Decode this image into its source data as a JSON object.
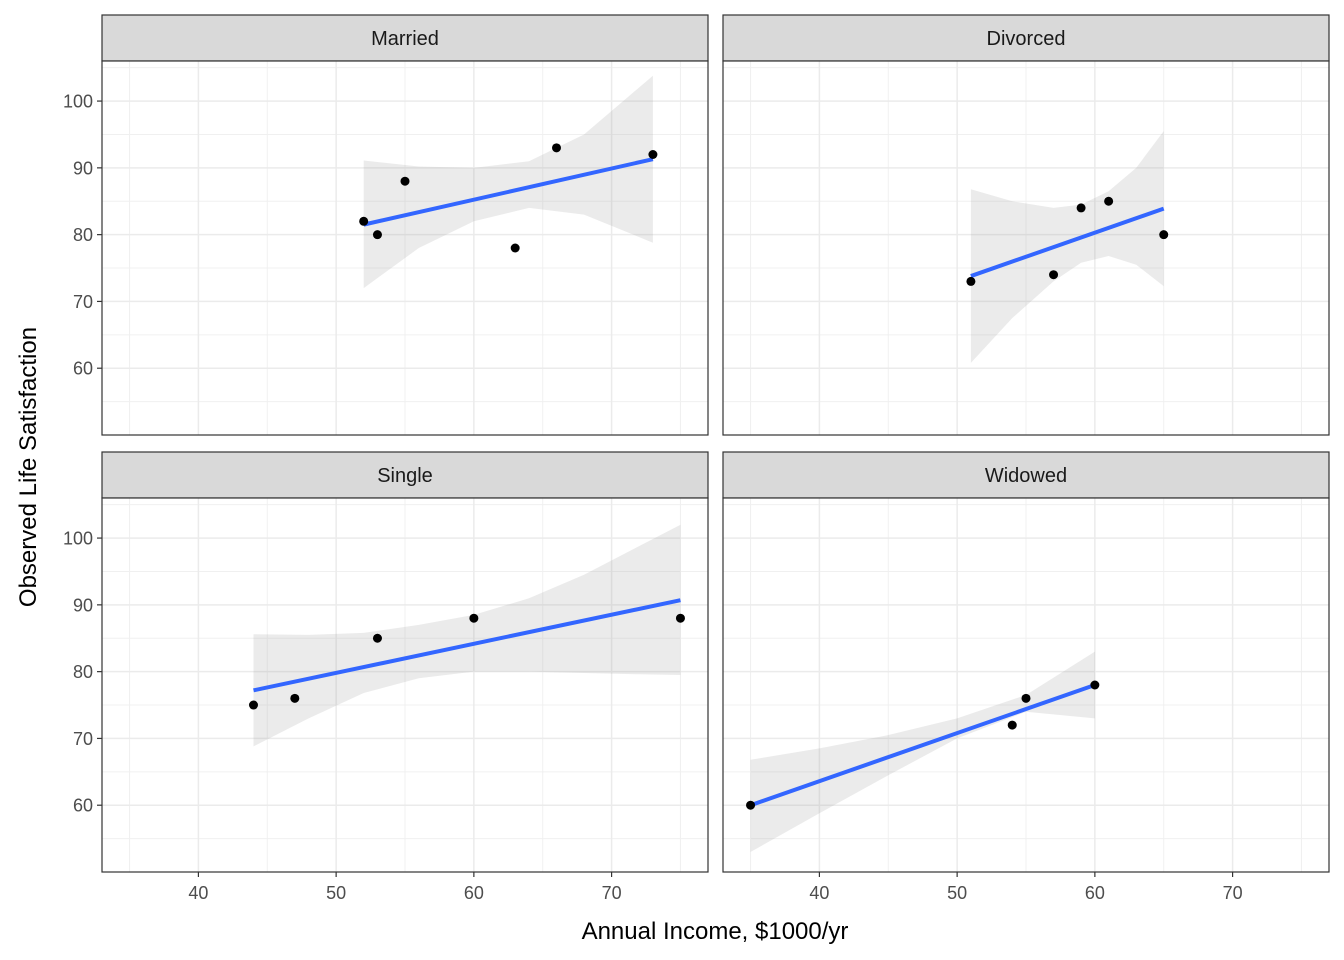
{
  "chart_data": {
    "type": "scatter",
    "xlabel": "Annual Income, $1000/yr",
    "ylabel": "Observed Life Satisfaction",
    "xlim": [
      33,
      77
    ],
    "ylim": [
      50,
      106
    ],
    "x_ticks": [
      40,
      50,
      60,
      70
    ],
    "y_ticks": [
      60,
      70,
      80,
      90,
      100
    ],
    "grid": true,
    "panels": [
      {
        "title": "Married",
        "points": [
          [
            52,
            82
          ],
          [
            53,
            80
          ],
          [
            55,
            88
          ],
          [
            63,
            78
          ],
          [
            66,
            93
          ],
          [
            73,
            92
          ]
        ],
        "fit": {
          "x": [
            52,
            73
          ],
          "y": [
            81.5,
            91.3
          ]
        },
        "band": {
          "x": [
            52,
            56,
            60,
            64,
            68,
            73
          ],
          "lower": [
            72.0,
            78.0,
            82.0,
            84.0,
            83.0,
            78.8
          ],
          "upper": [
            91.1,
            90.2,
            90.0,
            91.0,
            95.0,
            103.8
          ]
        }
      },
      {
        "title": "Divorced",
        "points": [
          [
            51,
            73
          ],
          [
            57,
            74
          ],
          [
            59,
            84
          ],
          [
            61,
            85
          ],
          [
            65,
            80
          ]
        ],
        "fit": {
          "x": [
            51,
            65
          ],
          "y": [
            73.8,
            83.9
          ]
        },
        "band": {
          "x": [
            51,
            54,
            57,
            59,
            61,
            63,
            65
          ],
          "lower": [
            60.8,
            67.5,
            73.0,
            75.8,
            76.8,
            75.5,
            72.3
          ],
          "upper": [
            86.8,
            85.0,
            84.0,
            84.5,
            86.5,
            90.0,
            95.5
          ]
        }
      },
      {
        "title": "Single",
        "points": [
          [
            44,
            75
          ],
          [
            47,
            76
          ],
          [
            53,
            85
          ],
          [
            60,
            88
          ],
          [
            75,
            88
          ]
        ],
        "fit": {
          "x": [
            44,
            75
          ],
          "y": [
            77.2,
            90.7
          ]
        },
        "band": {
          "x": [
            44,
            48,
            52,
            56,
            60,
            64,
            68,
            72,
            75
          ],
          "lower": [
            68.8,
            73.0,
            76.8,
            79.0,
            80.0,
            80.0,
            79.8,
            79.6,
            79.5
          ],
          "upper": [
            85.6,
            85.5,
            85.8,
            87.0,
            88.5,
            91.0,
            94.5,
            98.8,
            102.0
          ]
        }
      },
      {
        "title": "Widowed",
        "points": [
          [
            35,
            60
          ],
          [
            54,
            72
          ],
          [
            55,
            76
          ],
          [
            60,
            78
          ]
        ],
        "fit": {
          "x": [
            35,
            60
          ],
          "y": [
            60.0,
            78.0
          ]
        },
        "band": {
          "x": [
            35,
            40,
            45,
            50,
            55,
            60
          ],
          "lower": [
            53.0,
            58.8,
            64.5,
            70.0,
            74.0,
            73.0
          ],
          "upper": [
            66.8,
            68.5,
            70.5,
            73.0,
            76.5,
            83.0
          ]
        }
      }
    ]
  }
}
